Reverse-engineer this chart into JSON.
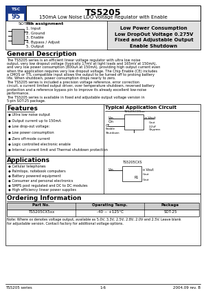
{
  "title": "TS5205",
  "subtitle": "150mA Low Noise LDO Voltage Regulator with Enable",
  "package_label": "SOT-25",
  "pin_assignment_title": "Pin assignment",
  "pin_list": [
    "1. Input",
    "2. Ground",
    "3. Enable",
    "4. Bypass / Adjust",
    "5. Output"
  ],
  "features_box": [
    "Low Power Consumption",
    "Low DropOut Voltage 0.275V",
    "Fixed and Adjustable Output",
    "Enable Shutdown"
  ],
  "general_desc_title": "General Description",
  "general_desc_p1": "The TS5205 series is an efficient linear voltage regulator with ultra low noise output, very low dropout voltage (typically 17mV at light loads and 165mV at 150mA), and very low power consumption (800uA at 150mA), providing high output current even when the application requires very low dropout voltage. The Chip Enable (CE) includes a CMOS or TTL compatible input allows the output to be turned off to prolong battery life. When shutdown, power consumption drops nearly to zero.",
  "general_desc_p2": "The TS5205 series is included a precision voltage reference, error correction circuit, a current limited output driver, over temperature shutdown, reversed battery protection and a reference bypass pin to improve its already excellent low-noise performance.",
  "general_desc_p3": "The TS5205 series is available in fixed and adjustable output voltage version in 5-pin SOT-25 package.",
  "features_title": "Features",
  "features_list": [
    "Ultra low noise output",
    "Output current up to 150mA",
    "Low drop-out voltage:",
    "Low power consumption",
    "Zero off-mode current",
    "Logic controlled electronic enable",
    "Internal current limit and Thermal shutdown protection"
  ],
  "typical_app_title": "Typical Application Circuit",
  "applications_title": "Applications",
  "applications_list": [
    "Cellular telephones",
    "Palmtops, notebook computers",
    "Battery powered equipment",
    "Consumer and personal electronics",
    "SMPS post regulated and DC to DC modules",
    "High efficiency linear power supplies"
  ],
  "ordering_title": "Ordering Information",
  "ordering_headers": [
    "Part No.",
    "Operating Temp.",
    "Package"
  ],
  "ordering_row": [
    "TS5205CX5xx",
    "-40 ~ +125°C",
    "SOT-25"
  ],
  "ordering_note1": "Note: Where xx denotes voltage output, available as 5.0V, 3.3V, 2.5V, 2.8V, 2.0V and 2.5V. Leave blank",
  "ordering_note2": "for adjustable version. Contact factory for additional voltage options.",
  "footer_left": "TS5205 series",
  "footer_center": "1-6",
  "footer_right": "2004.09 rev. B",
  "logo_blue": "#1a3a8a",
  "gray_box": "#e0e0e0",
  "light_gray": "#f0f0f0",
  "white": "#ffffff",
  "black": "#000000"
}
